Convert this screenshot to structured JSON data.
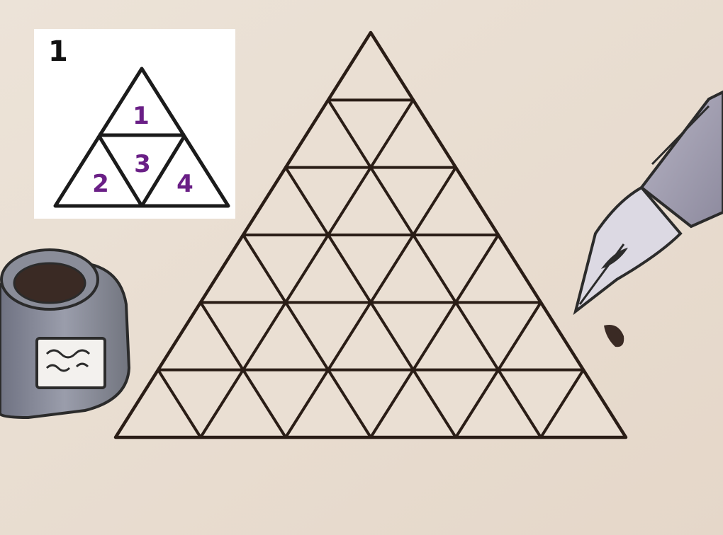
{
  "example": {
    "number": "1",
    "region_labels": [
      "1",
      "2",
      "3",
      "4"
    ]
  },
  "puzzle": {
    "rows": 6,
    "line_color": "#2a1d16",
    "fill_color": "#eadfd3"
  },
  "props": {
    "left": "ink-bottle",
    "right": "fountain-pen"
  }
}
